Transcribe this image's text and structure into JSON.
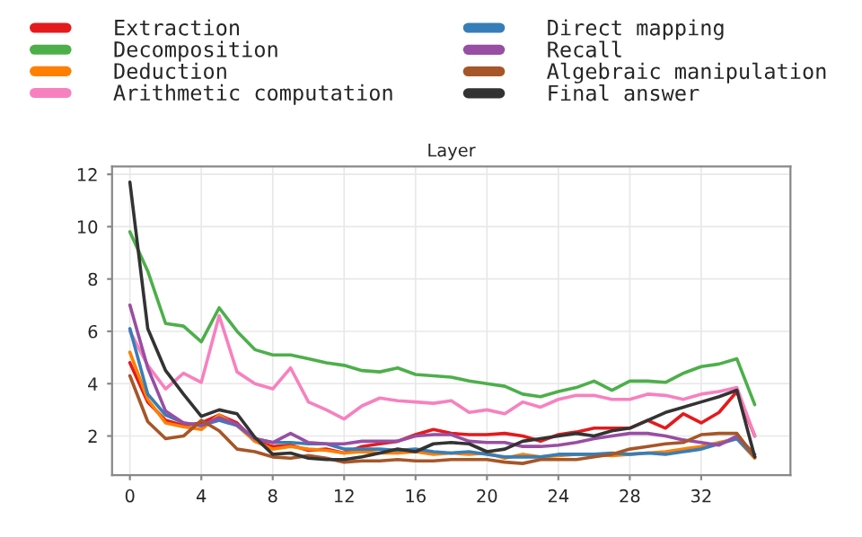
{
  "chart_data": {
    "type": "line",
    "xlabel": "Layer",
    "x": [
      0,
      1,
      2,
      3,
      4,
      5,
      6,
      7,
      8,
      9,
      10,
      11,
      12,
      13,
      14,
      15,
      16,
      17,
      18,
      19,
      20,
      21,
      22,
      23,
      24,
      25,
      26,
      27,
      28,
      29,
      30,
      31,
      32,
      33,
      34,
      35
    ],
    "series": [
      {
        "name": "Extraction",
        "color": "#e41a1c",
        "values": [
          4.8,
          3.3,
          2.6,
          2.4,
          2.5,
          2.8,
          2.5,
          1.8,
          1.6,
          1.65,
          1.45,
          1.5,
          1.35,
          1.6,
          1.7,
          1.8,
          2.05,
          2.25,
          2.1,
          2.05,
          2.05,
          2.1,
          2.0,
          1.8,
          2.05,
          2.15,
          2.3,
          2.3,
          2.3,
          2.6,
          2.3,
          2.85,
          2.5,
          2.9,
          3.7,
          2.0
        ]
      },
      {
        "name": "Decomposition",
        "color": "#4daf4a",
        "values": [
          9.8,
          8.3,
          6.3,
          6.2,
          5.6,
          6.9,
          6.0,
          5.3,
          5.1,
          5.1,
          4.95,
          4.8,
          4.7,
          4.5,
          4.45,
          4.6,
          4.35,
          4.3,
          4.25,
          4.1,
          4.0,
          3.9,
          3.6,
          3.5,
          3.7,
          3.85,
          4.1,
          3.75,
          4.1,
          4.1,
          4.05,
          4.4,
          4.65,
          4.75,
          4.95,
          3.2
        ]
      },
      {
        "name": "Deduction",
        "color": "#ff7f00",
        "values": [
          5.2,
          3.4,
          2.5,
          2.35,
          2.25,
          2.8,
          2.4,
          1.8,
          1.5,
          1.6,
          1.5,
          1.45,
          1.35,
          1.4,
          1.35,
          1.35,
          1.4,
          1.3,
          1.35,
          1.3,
          1.35,
          1.15,
          1.3,
          1.2,
          1.25,
          1.3,
          1.3,
          1.25,
          1.3,
          1.35,
          1.4,
          1.5,
          1.6,
          1.75,
          1.9,
          1.15
        ]
      },
      {
        "name": "Arithmetic computation",
        "color": "#f781bf",
        "values": [
          6.0,
          4.7,
          3.8,
          4.4,
          4.05,
          6.6,
          4.45,
          4.0,
          3.8,
          4.6,
          3.3,
          3.0,
          2.65,
          3.15,
          3.45,
          3.35,
          3.3,
          3.25,
          3.35,
          2.9,
          3.0,
          2.85,
          3.3,
          3.1,
          3.4,
          3.55,
          3.55,
          3.4,
          3.4,
          3.6,
          3.55,
          3.4,
          3.6,
          3.7,
          3.85,
          2.0
        ]
      },
      {
        "name": "Direct mapping",
        "color": "#377eb8",
        "values": [
          6.1,
          3.6,
          2.8,
          2.5,
          2.4,
          2.6,
          2.4,
          1.9,
          1.75,
          1.75,
          1.7,
          1.7,
          1.5,
          1.5,
          1.5,
          1.45,
          1.5,
          1.4,
          1.35,
          1.4,
          1.3,
          1.2,
          1.2,
          1.2,
          1.3,
          1.3,
          1.3,
          1.35,
          1.3,
          1.35,
          1.3,
          1.4,
          1.5,
          1.7,
          1.9,
          1.2
        ]
      },
      {
        "name": "Recall",
        "color": "#984ea3",
        "values": [
          7.0,
          4.6,
          2.95,
          2.5,
          2.4,
          2.7,
          2.45,
          1.9,
          1.75,
          2.1,
          1.75,
          1.7,
          1.7,
          1.8,
          1.8,
          1.8,
          2.0,
          2.05,
          2.05,
          1.8,
          1.75,
          1.75,
          1.6,
          1.6,
          1.65,
          1.75,
          1.9,
          2.0,
          2.1,
          2.1,
          2.0,
          1.85,
          1.75,
          1.65,
          2.0,
          1.3
        ]
      },
      {
        "name": "Algebraic manipulation",
        "color": "#a65628",
        "values": [
          4.3,
          2.55,
          1.9,
          2.0,
          2.6,
          2.2,
          1.5,
          1.4,
          1.2,
          1.15,
          1.25,
          1.15,
          1.0,
          1.05,
          1.05,
          1.1,
          1.05,
          1.05,
          1.1,
          1.1,
          1.1,
          1.0,
          0.95,
          1.1,
          1.1,
          1.1,
          1.2,
          1.3,
          1.5,
          1.6,
          1.7,
          1.75,
          2.05,
          2.1,
          2.1,
          1.2
        ]
      },
      {
        "name": "Final answer",
        "color": "#333333",
        "values": [
          11.7,
          6.1,
          4.5,
          3.6,
          2.75,
          3.0,
          2.85,
          1.95,
          1.3,
          1.35,
          1.15,
          1.1,
          1.1,
          1.2,
          1.35,
          1.5,
          1.4,
          1.7,
          1.75,
          1.7,
          1.4,
          1.5,
          1.8,
          1.9,
          2.0,
          2.1,
          2.0,
          2.2,
          2.3,
          2.6,
          2.9,
          3.1,
          3.3,
          3.5,
          3.75,
          1.2
        ]
      }
    ],
    "xlim": [
      -1,
      37
    ],
    "ylim": [
      0.5,
      12.3
    ],
    "xticks": [
      0,
      4,
      8,
      12,
      16,
      20,
      24,
      28,
      32
    ],
    "yticks": [
      2,
      4,
      6,
      8,
      10,
      12
    ],
    "grid": true,
    "legend": "top",
    "line_style": "solid",
    "marker": "none"
  }
}
